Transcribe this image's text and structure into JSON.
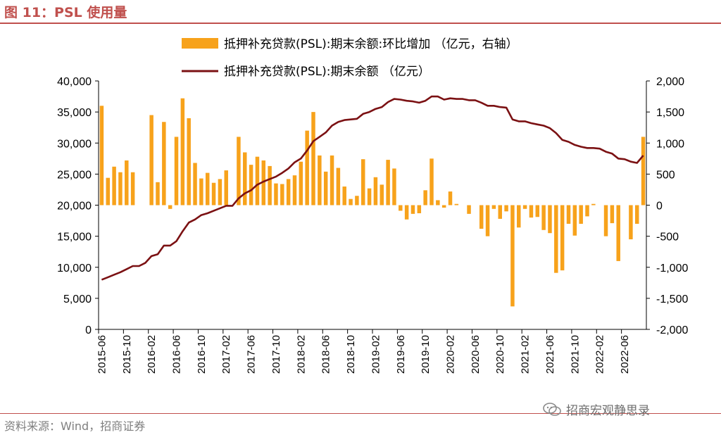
{
  "figure": {
    "title": "图 11：PSL 使用量",
    "source": "资料来源：Wind，招商证券",
    "watermark": "招商宏观静思录"
  },
  "colors": {
    "bar": "#f7a21b",
    "line": "#7b1113",
    "accent": "#c0504d",
    "watermark_icon": "wechat-icon"
  },
  "chart_data": {
    "type": "bar+line",
    "legend_placement": "top-center",
    "grid": false,
    "x": [
      "2015-06",
      "2015-07",
      "2015-08",
      "2015-09",
      "2015-10",
      "2015-11",
      "2015-12",
      "2016-01",
      "2016-02",
      "2016-03",
      "2016-04",
      "2016-05",
      "2016-06",
      "2016-07",
      "2016-08",
      "2016-09",
      "2016-10",
      "2016-11",
      "2016-12",
      "2017-01",
      "2017-02",
      "2017-03",
      "2017-04",
      "2017-05",
      "2017-06",
      "2017-07",
      "2017-08",
      "2017-09",
      "2017-10",
      "2017-11",
      "2017-12",
      "2018-01",
      "2018-02",
      "2018-03",
      "2018-04",
      "2018-05",
      "2018-06",
      "2018-07",
      "2018-08",
      "2018-09",
      "2018-10",
      "2018-11",
      "2018-12",
      "2019-01",
      "2019-02",
      "2019-03",
      "2019-04",
      "2019-05",
      "2019-06",
      "2019-07",
      "2019-08",
      "2019-09",
      "2019-10",
      "2019-11",
      "2019-12",
      "2020-01",
      "2020-02",
      "2020-03",
      "2020-04",
      "2020-05",
      "2020-06",
      "2020-07",
      "2020-08",
      "2020-09",
      "2020-10",
      "2020-11",
      "2020-12",
      "2021-01",
      "2021-02",
      "2021-03",
      "2021-04",
      "2021-05",
      "2021-06",
      "2021-07",
      "2021-08",
      "2021-09",
      "2021-10",
      "2021-11",
      "2021-12",
      "2022-01",
      "2022-02",
      "2022-03",
      "2022-04",
      "2022-05",
      "2022-06",
      "2022-07",
      "2022-08",
      "2022-09"
    ],
    "x_tick_labels": [
      "2015-06",
      "2015-10",
      "2016-02",
      "2016-06",
      "2016-10",
      "2017-02",
      "2017-06",
      "2017-10",
      "2018-02",
      "2018-06",
      "2018-10",
      "2019-02",
      "2019-06",
      "2019-10",
      "2020-02",
      "2020-06",
      "2020-10",
      "2021-02",
      "2021-06",
      "2021-10",
      "2022-02",
      "2022-06"
    ],
    "y_left": {
      "ylim": [
        0,
        40000
      ],
      "ticks": [
        "0",
        "5,000",
        "10,000",
        "15,000",
        "20,000",
        "25,000",
        "30,000",
        "35,000",
        "40,000"
      ]
    },
    "y_right": {
      "ylim": [
        -2000,
        2000
      ],
      "ticks": [
        "-2,000",
        "-1,500",
        "-1,000",
        "-500",
        "0",
        "500",
        "1,000",
        "1,500",
        "2,000"
      ]
    },
    "series": [
      {
        "name": "抵押补充贷款(PSL):期末余额:环比增加 （亿元，右轴）",
        "type": "bar",
        "axis": "right",
        "values": [
          1600,
          440,
          620,
          530,
          720,
          530,
          null,
          null,
          1450,
          370,
          1340,
          -60,
          1100,
          1720,
          1400,
          680,
          430,
          520,
          360,
          420,
          560,
          null,
          1100,
          850,
          650,
          780,
          720,
          630,
          350,
          340,
          420,
          480,
          700,
          1200,
          1500,
          800,
          540,
          800,
          600,
          300,
          100,
          150,
          740,
          270,
          450,
          330,
          730,
          590,
          -90,
          -230,
          -140,
          -130,
          240,
          750,
          80,
          -40,
          220,
          20,
          null,
          -140,
          null,
          -380,
          -500,
          -60,
          -220,
          -100,
          -1630,
          -360,
          -60,
          -200,
          -190,
          -400,
          -450,
          -1090,
          -1050,
          -300,
          -490,
          -300,
          -180,
          20,
          null,
          -500,
          -290,
          -900,
          null,
          -550,
          -300,
          1100
        ]
      },
      {
        "name": "抵押补充贷款(PSL):期末余额 （亿元）",
        "type": "line",
        "axis": "left",
        "values": [
          8000,
          8400,
          8800,
          9200,
          9700,
          10200,
          10200,
          10700,
          11800,
          12100,
          13500,
          13500,
          14200,
          15800,
          17200,
          17700,
          18400,
          18700,
          19100,
          19500,
          19900,
          19900,
          21100,
          21900,
          22400,
          23300,
          23800,
          24200,
          24600,
          25200,
          25900,
          26900,
          27500,
          28800,
          30300,
          31000,
          31700,
          32800,
          33400,
          33700,
          33800,
          33900,
          34700,
          35000,
          35500,
          35800,
          36600,
          37100,
          37000,
          36800,
          36700,
          36500,
          36800,
          37500,
          37500,
          37000,
          37200,
          37100,
          37100,
          36900,
          36900,
          36500,
          36000,
          36000,
          35800,
          35700,
          33800,
          33500,
          33500,
          33200,
          33000,
          32800,
          32400,
          31600,
          30500,
          30200,
          29700,
          29400,
          29200,
          29200,
          29100,
          28600,
          28300,
          27500,
          27400,
          27000,
          26800,
          28000
        ]
      }
    ]
  }
}
